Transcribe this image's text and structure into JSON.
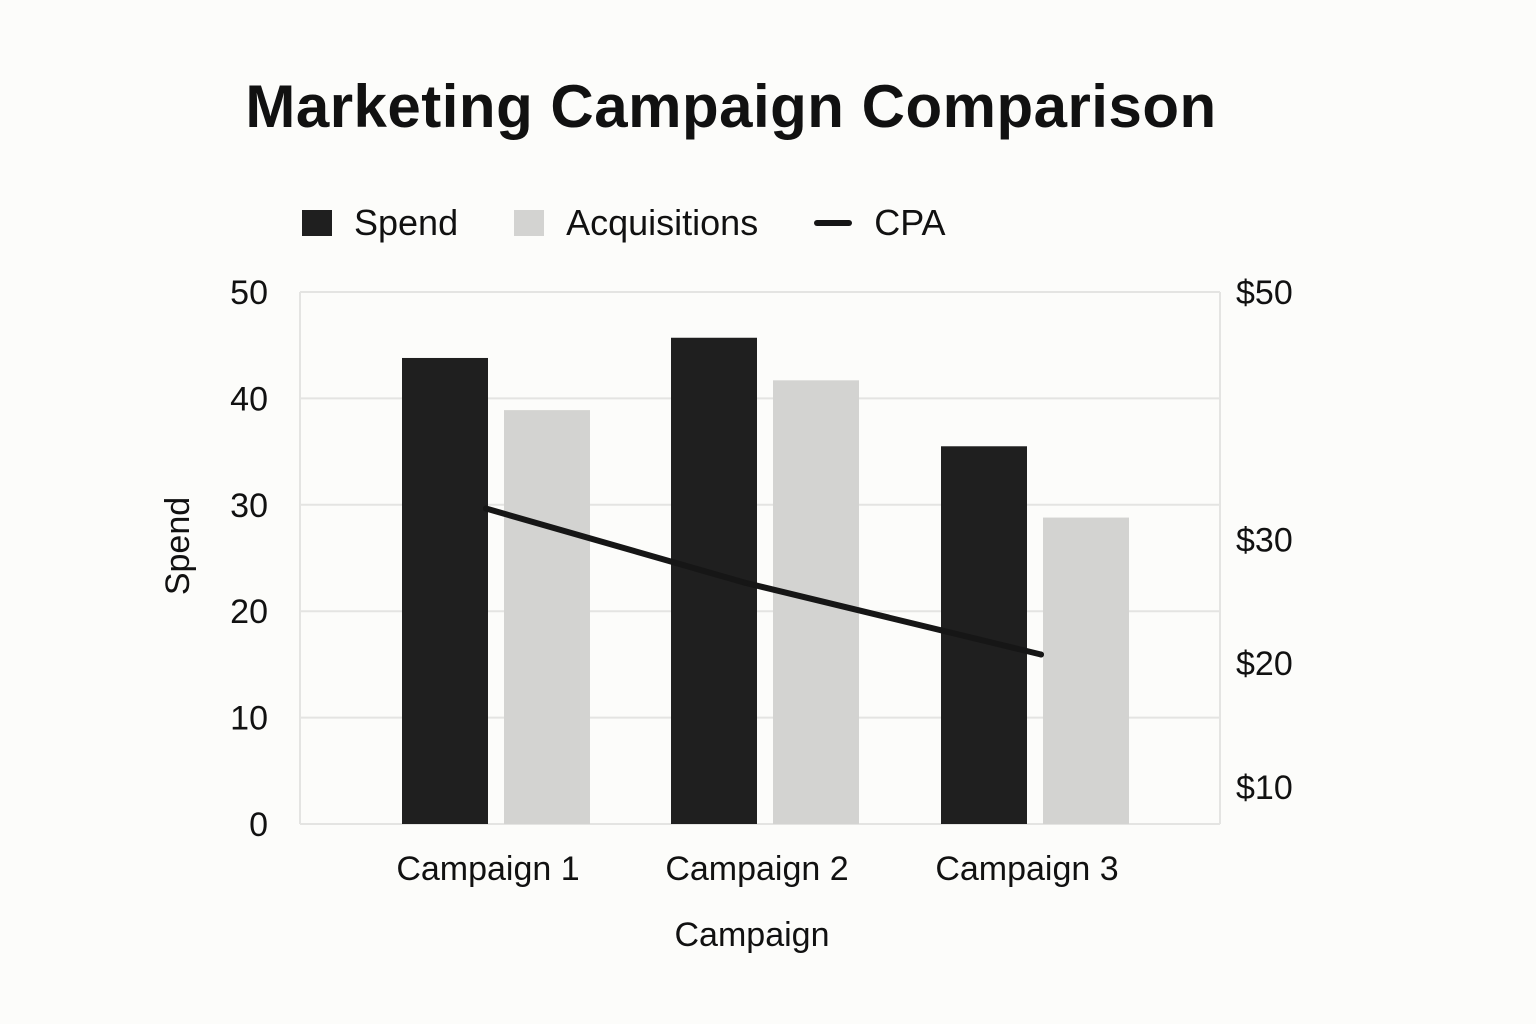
{
  "chart_data": {
    "type": "bar",
    "title": "Marketing Campaign Comparison",
    "xlabel": "Campaign",
    "ylabel": "Spend",
    "categories": [
      "Campaign 1",
      "Campaign 2",
      "Campaign 3"
    ],
    "series": [
      {
        "name": "Spend",
        "type": "bar",
        "axis": "left",
        "values": [
          43.8,
          45.7,
          35.5
        ]
      },
      {
        "name": "Acquisitions",
        "type": "bar",
        "axis": "left",
        "values": [
          38.9,
          41.7,
          28.8
        ]
      },
      {
        "name": "CPA",
        "type": "line",
        "axis": "right",
        "values": [
          32.5,
          26.5,
          20.7
        ]
      }
    ],
    "ylim": [
      0,
      50
    ],
    "yticks": [
      "0",
      "10",
      "20",
      "30",
      "40",
      "50"
    ],
    "y2lim": [
      7,
      50
    ],
    "y2ticks": [
      "$10",
      "$20",
      "$30",
      "$50"
    ],
    "grid": true,
    "legend": "top-left"
  },
  "colors": {
    "spend": "#1f1f1f",
    "acquisitions": "#d3d3d1",
    "cpa": "#161616",
    "grid": "#e4e4e2",
    "background": "#fcfcfa"
  }
}
